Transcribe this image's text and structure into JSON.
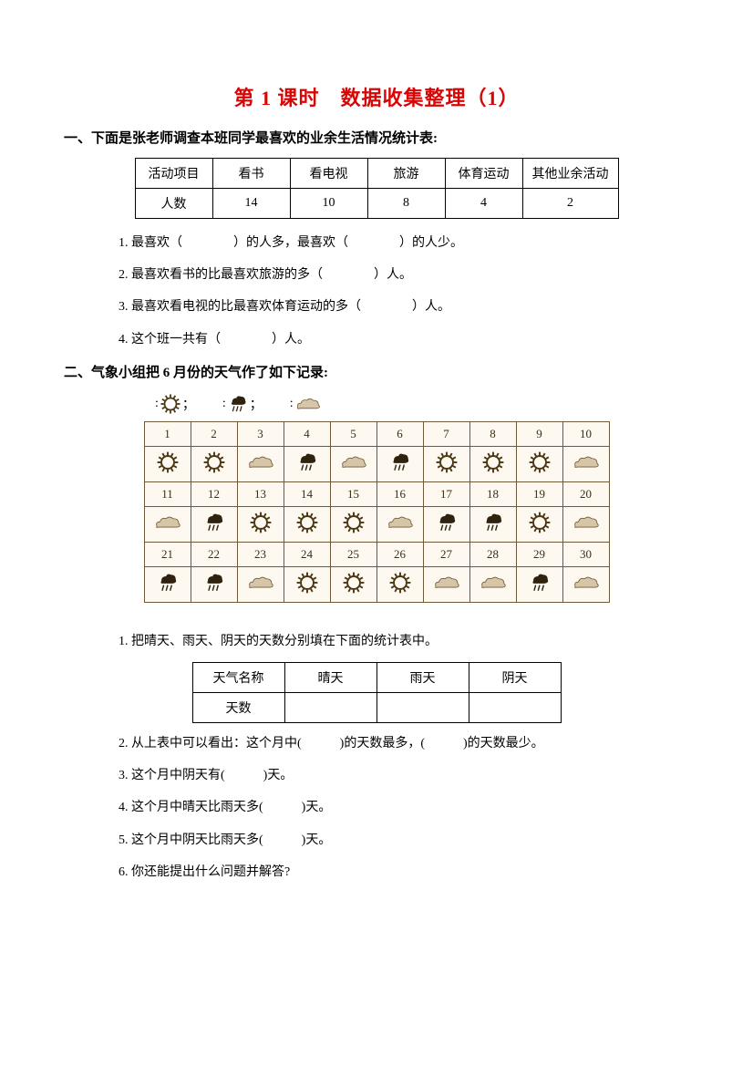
{
  "page_title": "第 1 课时　数据收集整理（1）",
  "title_color": "#d80505",
  "section1": {
    "heading": "一、下面是张老师调查本班同学最喜欢的业余生活情况统计表:",
    "table": {
      "header_row": [
        "活动项目",
        "看书",
        "看电视",
        "旅游",
        "体育运动",
        "其他业余活动"
      ],
      "data_row": [
        "人数",
        "14",
        "10",
        "8",
        "4",
        "2"
      ]
    },
    "questions": [
      "1. 最喜欢（　　　　）的人多，最喜欢（　　　　）的人少。",
      "2. 最喜欢看书的比最喜欢旅游的多（　　　　）人。",
      "3. 最喜欢看电视的比最喜欢体育运动的多（　　　　）人。",
      "4. 这个班一共有（　　　　）人。"
    ]
  },
  "section2": {
    "heading": "二、气象小组把 6 月份的天气作了如下记录:",
    "legend": [
      {
        "icon": "sun",
        "label": "；"
      },
      {
        "icon": "rain",
        "label": "；"
      },
      {
        "icon": "cloud",
        "label": ""
      }
    ],
    "calendar_days": [
      "1",
      "2",
      "3",
      "4",
      "5",
      "6",
      "7",
      "8",
      "9",
      "10",
      "11",
      "12",
      "13",
      "14",
      "15",
      "16",
      "17",
      "18",
      "19",
      "20",
      "21",
      "22",
      "23",
      "24",
      "25",
      "26",
      "27",
      "28",
      "29",
      "30"
    ],
    "calendar_weather": [
      "sun",
      "sun",
      "cloud",
      "rain",
      "cloud",
      "rain",
      "sun",
      "sun",
      "sun",
      "cloud",
      "cloud",
      "rain",
      "sun",
      "sun",
      "sun",
      "cloud",
      "rain",
      "rain",
      "sun",
      "cloud",
      "rain",
      "rain",
      "cloud",
      "sun",
      "sun",
      "sun",
      "cloud",
      "cloud",
      "rain",
      "cloud"
    ],
    "fill_table": {
      "row1": [
        "天气名称",
        "晴天",
        "雨天",
        "阴天"
      ],
      "row2_label": "天数"
    },
    "questions": [
      "1. 把晴天、雨天、阴天的天数分别填在下面的统计表中。",
      "2. 从上表中可以看出：这个月中(　　　)的天数最多，(　　　)的天数最少。",
      "3. 这个月中阴天有(　　　)天。",
      "4. 这个月中晴天比雨天多(　　　)天。",
      "5. 这个月中阴天比雨天多(　　　)天。",
      "6. 你还能提出什么问题并解答?"
    ],
    "icon_colors": {
      "sun_stroke": "#4a3612",
      "rain_fill": "#2f2310",
      "cloud_stroke": "#6e5a39",
      "cloud_fill": "#d6c6a7"
    }
  }
}
